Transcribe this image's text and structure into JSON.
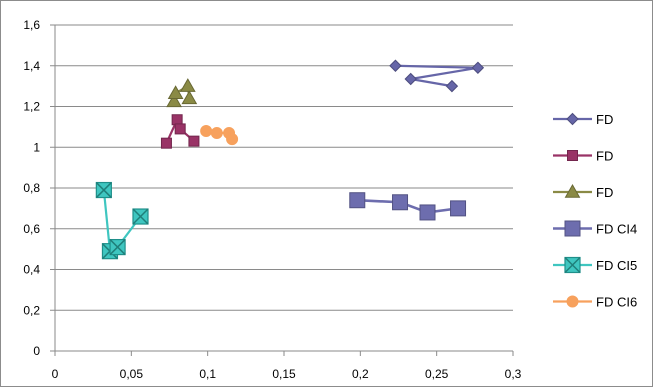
{
  "chart_data": {
    "type": "scatter",
    "title": "",
    "xlabel": "",
    "ylabel": "",
    "xlim": [
      0,
      0.3
    ],
    "ylim": [
      0,
      1.6
    ],
    "x_ticks": [
      "0",
      "0,05",
      "0,1",
      "0,15",
      "0,2",
      "0,25",
      "0,3"
    ],
    "y_ticks": [
      "0",
      "0,2",
      "0,4",
      "0,6",
      "0,8",
      "1",
      "1,2",
      "1,4",
      "1,6"
    ],
    "x_tick_values": [
      0,
      0.05,
      0.1,
      0.15,
      0.2,
      0.25,
      0.3
    ],
    "y_tick_values": [
      0,
      0.2,
      0.4,
      0.6,
      0.8,
      1.0,
      1.2,
      1.4,
      1.6
    ],
    "grid": "horizontal",
    "legend_position": "right",
    "series": [
      {
        "name": "FD",
        "color": "#6666a8",
        "marker": "diamond",
        "points": [
          [
            0.223,
            1.4
          ],
          [
            0.277,
            1.39
          ],
          [
            0.233,
            1.335
          ],
          [
            0.26,
            1.3
          ]
        ]
      },
      {
        "name": "FD",
        "color": "#993366",
        "marker": "square",
        "points": [
          [
            0.073,
            1.02
          ],
          [
            0.08,
            1.135
          ],
          [
            0.082,
            1.09
          ],
          [
            0.091,
            1.03
          ]
        ]
      },
      {
        "name": "FD",
        "color": "#8a8a45",
        "marker": "triangle",
        "points": [
          [
            0.078,
            1.225
          ],
          [
            0.079,
            1.265
          ],
          [
            0.087,
            1.3
          ],
          [
            0.088,
            1.24
          ]
        ]
      },
      {
        "name": "FD CI4",
        "color": "#6d6dae",
        "marker": "big-square",
        "points": [
          [
            0.198,
            0.74
          ],
          [
            0.226,
            0.73
          ],
          [
            0.244,
            0.68
          ],
          [
            0.264,
            0.7
          ]
        ]
      },
      {
        "name": "FD CI5",
        "color": "#3fc6c0",
        "marker": "box-x",
        "points": [
          [
            0.032,
            0.79
          ],
          [
            0.036,
            0.49
          ],
          [
            0.041,
            0.51
          ],
          [
            0.056,
            0.66
          ]
        ]
      },
      {
        "name": "FD CI6",
        "color": "#f7a15d",
        "marker": "circle",
        "points": [
          [
            0.099,
            1.08
          ],
          [
            0.106,
            1.07
          ],
          [
            0.114,
            1.07
          ],
          [
            0.116,
            1.04
          ]
        ]
      }
    ]
  }
}
